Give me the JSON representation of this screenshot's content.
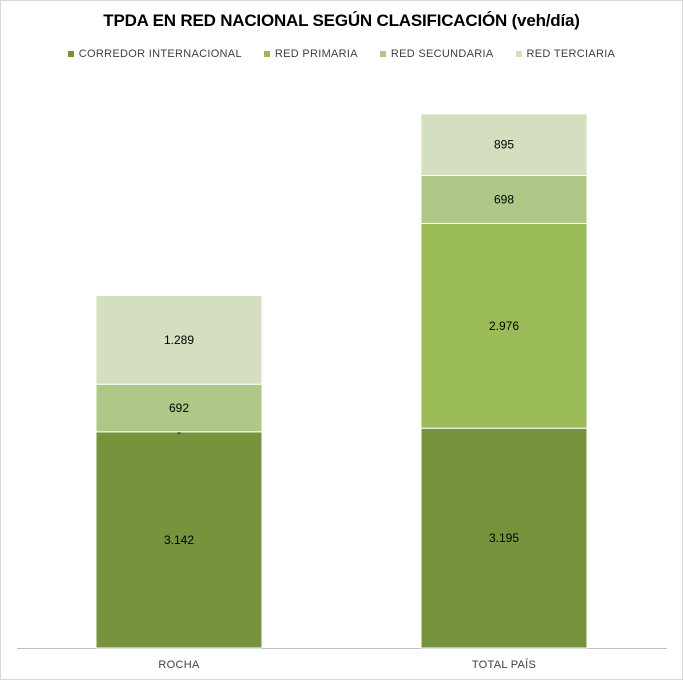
{
  "chart_data": {
    "type": "bar",
    "stacked": true,
    "title": "TPDA EN RED NACIONAL SEGÚN CLASIFICACIÓN (veh/día)",
    "categories": [
      "ROCHA",
      "TOTAL PAÍS"
    ],
    "series": [
      {
        "name": "CORREDOR INTERNACIONAL",
        "color": "#77933c",
        "values": [
          3142,
          3195
        ],
        "labels": [
          "3.142",
          "3.195"
        ]
      },
      {
        "name": "RED PRIMARIA",
        "color": "#9bbb59",
        "values": [
          0,
          2976
        ],
        "labels": [
          "-",
          "2.976"
        ]
      },
      {
        "name": "RED SECUNDARIA",
        "color": "#afc887",
        "values": [
          692,
          698
        ],
        "labels": [
          "692",
          "698"
        ]
      },
      {
        "name": "RED TERCIARIA",
        "color": "#d3dfbe",
        "values": [
          1289,
          895
        ],
        "labels": [
          "1.289",
          "895"
        ]
      }
    ],
    "legend_position": "top",
    "grid": false
  }
}
